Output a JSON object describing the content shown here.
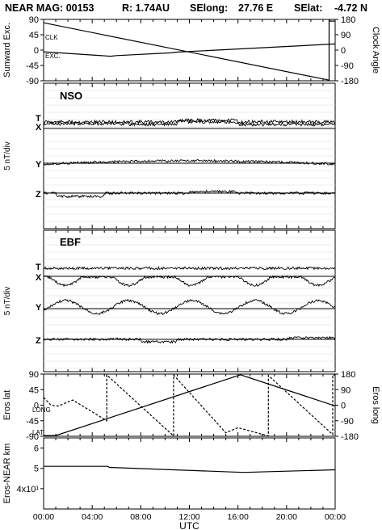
{
  "header": {
    "title": "NEAR MAG: 00153",
    "range": "R: 1.74AU",
    "selong_label": "SElong:",
    "selong_value": "27.76 E",
    "selat_label": "SElat:",
    "selat_value": "-4.72 N"
  },
  "xaxis": {
    "label": "UTC",
    "ticks": [
      "00:00",
      "04:00",
      "08:00",
      "12:00",
      "16:00",
      "20:00",
      "00:00"
    ]
  },
  "chart_data": [
    {
      "type": "line",
      "ylabel": "Sunward Exc.",
      "ylabel_right": "Clock Angle",
      "ylim": [
        -90,
        90
      ],
      "yticks": [
        "90",
        "45",
        "0",
        "-45",
        "-90"
      ],
      "ylim_right": [
        -180,
        180
      ],
      "yticks_right": [
        "180",
        "90",
        "0",
        "-90",
        "-180"
      ],
      "annotations": [
        "CLK",
        "EXC."
      ],
      "x_hours": [
        0,
        5.5,
        6,
        10.5,
        11,
        23,
        23.5,
        24
      ],
      "series": [
        {
          "label": "CLK",
          "axis": "right",
          "x": [
            0,
            23.5,
            23.5,
            23.6,
            24
          ],
          "values": [
            160,
            -176,
            176,
            170,
            170
          ]
        },
        {
          "label": "EXC.",
          "axis": "left",
          "x": [
            0,
            5.5,
            6,
            10.5,
            11,
            24
          ],
          "values": [
            -5,
            -18,
            -16,
            -8,
            -6,
            18
          ]
        }
      ]
    },
    {
      "type": "line",
      "title": "NSO",
      "ylabel": "5 nT/div",
      "components": [
        "T",
        "X",
        "Y",
        "Z"
      ]
    },
    {
      "type": "line",
      "title": "EBF",
      "ylabel": "5 nT/div",
      "components": [
        "T",
        "X",
        "Y",
        "Z"
      ]
    },
    {
      "type": "line",
      "ylabel": "Eros lat",
      "ylabel_right": "Eros long",
      "ylim": [
        -90,
        90
      ],
      "yticks": [
        "90",
        "45",
        "0",
        "-45",
        "-90"
      ],
      "ylim_right": [
        -180,
        180
      ],
      "yticks_right": [
        "180",
        "90",
        "0",
        "-90",
        "-180"
      ],
      "annotations": [
        "LONG",
        "LAT"
      ],
      "series": [
        {
          "label": "LAT",
          "axis": "left",
          "x": [
            0,
            1.0,
            16.2,
            24
          ],
          "values": [
            -88,
            -88,
            88,
            -2
          ]
        },
        {
          "label": "LONG",
          "axis": "right",
          "x": [
            0,
            0.6,
            1.2,
            2.4,
            5.2,
            5.2,
            10.7,
            10.7,
            15.0,
            16.0,
            18.5,
            18.5,
            23.8,
            23.8,
            24
          ],
          "values": [
            45,
            0,
            -5,
            30,
            -90,
            175,
            -178,
            175,
            -160,
            -130,
            -178,
            172,
            -170,
            175,
            175
          ]
        }
      ]
    },
    {
      "type": "line",
      "ylabel": "Eros-NEAR km",
      "ylim": [
        30,
        65
      ],
      "yticks": [
        "6",
        "5",
        "4x10¹"
      ],
      "series": [
        {
          "label": "range",
          "x": [
            0,
            5.3,
            5.4,
            15.5,
            16.5,
            24
          ],
          "values": [
            51,
            51,
            50.5,
            48.2,
            48,
            49.3
          ]
        }
      ]
    }
  ]
}
